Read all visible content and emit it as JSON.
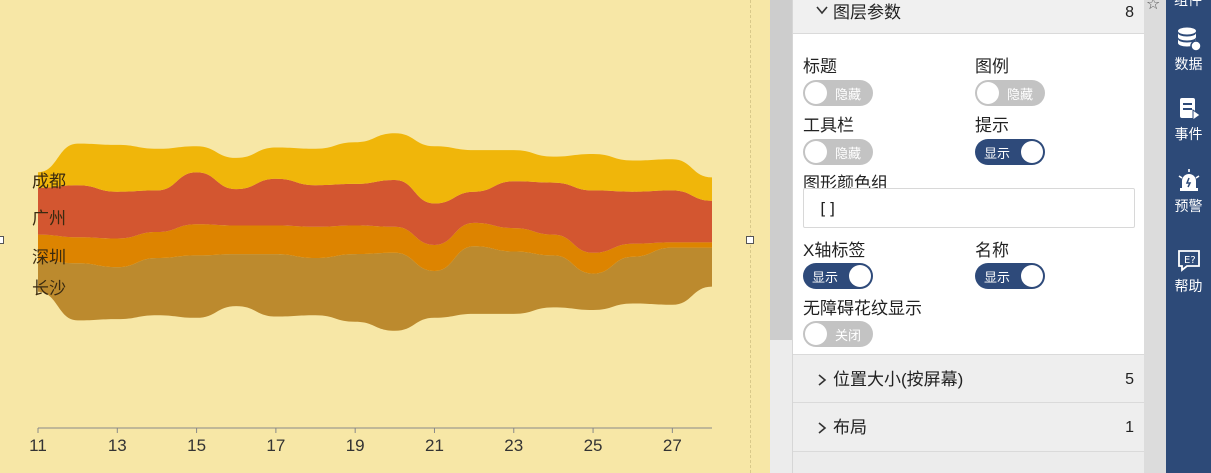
{
  "chart_data": {
    "type": "area",
    "subtype": "streamgraph",
    "x": [
      11,
      12,
      13,
      14,
      15,
      16,
      17,
      18,
      19,
      20,
      21,
      22,
      23,
      24,
      25,
      26,
      27,
      28
    ],
    "x_ticks": [
      "11",
      "13",
      "15",
      "17",
      "19",
      "21",
      "23",
      "25",
      "27"
    ],
    "series": [
      {
        "name": "长沙",
        "color": "#bc8a2e",
        "values": [
          12,
          22,
          20,
          22,
          24,
          20,
          24,
          22,
          26,
          30,
          18,
          26,
          24,
          20,
          14,
          18,
          22,
          15
        ]
      },
      {
        "name": "深圳",
        "color": "#dd8400",
        "values": [
          10,
          10,
          11,
          10,
          12,
          11,
          11,
          12,
          11,
          10,
          10,
          9,
          9,
          8,
          8,
          5,
          2,
          2
        ]
      },
      {
        "name": "广州",
        "color": "#d35630",
        "values": [
          18,
          20,
          18,
          16,
          20,
          14,
          18,
          16,
          16,
          18,
          16,
          12,
          18,
          20,
          24,
          20,
          20,
          16
        ]
      },
      {
        "name": "成都",
        "color": "#f0b60a",
        "values": [
          6,
          16,
          18,
          16,
          10,
          12,
          12,
          14,
          16,
          18,
          22,
          16,
          12,
          10,
          14,
          12,
          12,
          9
        ]
      }
    ],
    "legend": "left-labels",
    "grid": false
  },
  "panel": {
    "layer_params": {
      "title": "图层参数",
      "count": "8",
      "props": {
        "title_label": "标题",
        "title_toggle": "隐藏",
        "legend_label": "图例",
        "legend_toggle": "隐藏",
        "toolbar_label": "工具栏",
        "toolbar_toggle": "隐藏",
        "tooltip_label": "提示",
        "tooltip_toggle": "显示",
        "color_group_label": "图形颜色组",
        "color_group_value": "[]",
        "xaxis_label": "X轴标签",
        "xaxis_toggle": "显示",
        "name_label": "名称",
        "name_toggle": "显示",
        "a11y_label": "无障碍花纹显示",
        "a11y_toggle": "关闭"
      }
    },
    "position_size": {
      "title": "位置大小(按屏幕)",
      "count": "5"
    },
    "layout": {
      "title": "布局",
      "count": "1"
    }
  },
  "rightbar": {
    "top_label": "组件",
    "items": [
      {
        "label": "数据",
        "icon": "database-icon"
      },
      {
        "label": "事件",
        "icon": "event-icon"
      },
      {
        "label": "预警",
        "icon": "alarm-icon"
      },
      {
        "label": "帮助",
        "icon": "help-icon"
      }
    ]
  },
  "colors": {
    "canvas_bg": "#f7e7a6",
    "accent": "#2e4a7a",
    "toggle_off": "#c3c3c3"
  }
}
